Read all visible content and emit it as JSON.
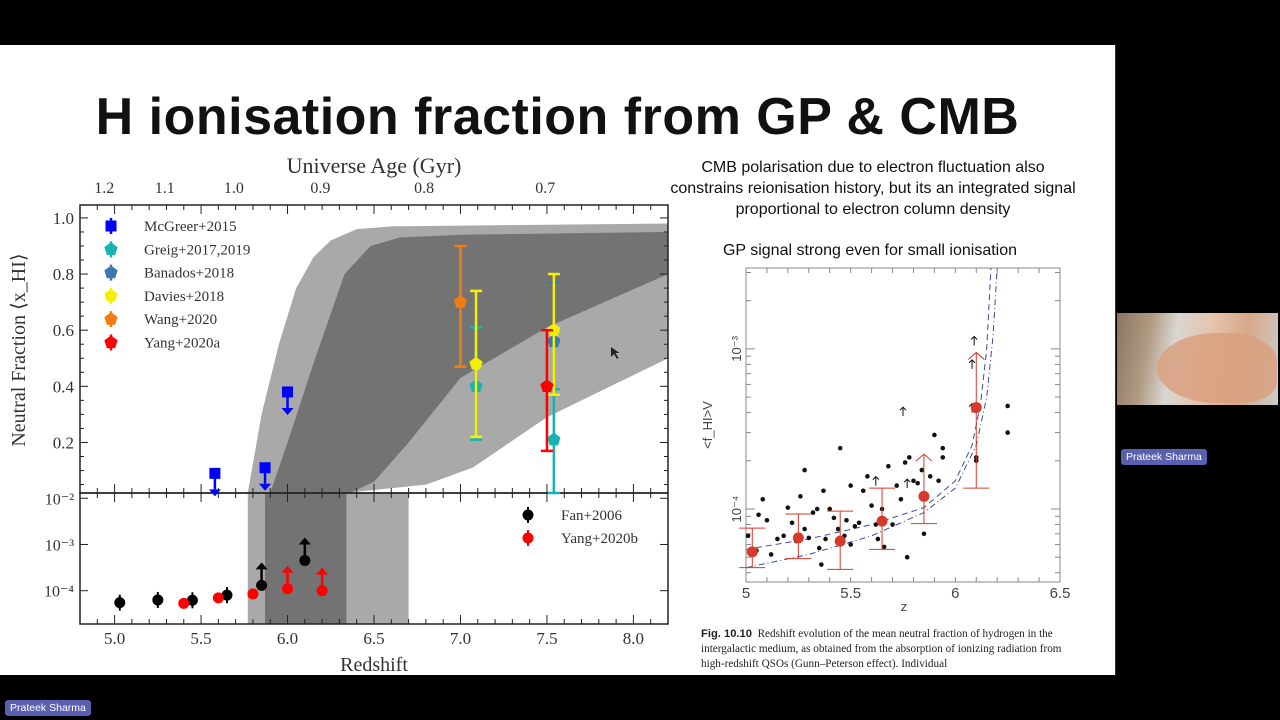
{
  "slide": {
    "title": "H ionisation fraction from GP & CMB",
    "cmb_note": "CMB polarisation due to electron fluctuation also constrains reionisation history, but its an integrated signal proportional to electron column density",
    "gp_note": "GP signal strong even for small ionisation",
    "caption_label": "Fig. 10.10",
    "caption_text": "Redshift evolution of the mean neutral fraction of hydrogen in the intergalactic medium, as obtained from the absorption of ionizing radiation from high-redshift QSOs (Gunn–Peterson effect). Individual"
  },
  "participants": {
    "presenter_name": "Prateek Sharma",
    "video_tile_name": "Prateek Sharma"
  },
  "chart_data": [
    {
      "type": "scatter",
      "panel": "upper",
      "xlabel": "Redshift",
      "ylabel": "Neutral Fraction ⟨x_HI⟩",
      "top_axis_label": "Universe Age (Gyr)",
      "top_ticks": [
        {
          "label": "1.2",
          "z": 4.94
        },
        {
          "label": "1.1",
          "z": 5.29
        },
        {
          "label": "1.0",
          "z": 5.69
        },
        {
          "label": "0.9",
          "z": 6.19
        },
        {
          "label": "0.8",
          "z": 6.79
        },
        {
          "label": "0.7",
          "z": 7.49
        }
      ],
      "xlim": [
        4.8,
        8.2
      ],
      "ylim": [
        0.02,
        1.046
      ],
      "xticks": [
        "5.0",
        "5.5",
        "6.0",
        "6.5",
        "7.0",
        "7.5",
        "8.0"
      ],
      "yticks": [
        "0.2",
        "0.4",
        "0.6",
        "0.8",
        "1.0"
      ],
      "legend_position": "top-left",
      "bands": [
        {
          "name": "outer",
          "color": "#a9a9a9",
          "polygon": [
            [
              5.77,
              0.02
            ],
            [
              5.85,
              0.3
            ],
            [
              5.95,
              0.55
            ],
            [
              6.05,
              0.75
            ],
            [
              6.15,
              0.86
            ],
            [
              6.25,
              0.92
            ],
            [
              6.4,
              0.96
            ],
            [
              6.6,
              0.97
            ],
            [
              8.2,
              0.98
            ],
            [
              8.2,
              0.5
            ],
            [
              7.5,
              0.29
            ],
            [
              7.07,
              0.11
            ],
            [
              6.8,
              0.05
            ],
            [
              6.33,
              0.02
            ]
          ]
        },
        {
          "name": "inner",
          "color": "#737373",
          "polygon": [
            [
              5.9,
              0.02
            ],
            [
              6.0,
              0.2
            ],
            [
              6.16,
              0.5
            ],
            [
              6.33,
              0.8
            ],
            [
              6.48,
              0.9
            ],
            [
              6.65,
              0.93
            ],
            [
              7.0,
              0.94
            ],
            [
              8.2,
              0.95
            ],
            [
              8.2,
              0.8
            ],
            [
              7.5,
              0.61
            ],
            [
              7.0,
              0.43
            ],
            [
              6.7,
              0.2
            ],
            [
              6.5,
              0.06
            ],
            [
              6.36,
              0.02
            ]
          ]
        }
      ],
      "series": [
        {
          "name": "McGreer+2015",
          "color": "#0000ff",
          "marker": "square",
          "points": [
            {
              "x": 5.58,
              "y": 0.09,
              "upper_limit": true
            },
            {
              "x": 5.87,
              "y": 0.11,
              "upper_limit": true
            },
            {
              "x": 6.0,
              "y": 0.38,
              "upper_limit": true
            }
          ]
        },
        {
          "name": "Greig+2017,2019",
          "color": "#17b3b3",
          "marker": "pentagon",
          "points": [
            {
              "x": 7.09,
              "y": 0.4,
              "lo": 0.21,
              "hi": 0.61
            },
            {
              "x": 7.54,
              "y": 0.21,
              "lo": 0.02,
              "hi": 0.39
            }
          ]
        },
        {
          "name": "Banados+2018",
          "color": "#3a78b0",
          "marker": "pentagon",
          "points": [
            {
              "x": 7.54,
              "y": 0.56,
              "lo": 0.56,
              "hi": 0.77
            }
          ]
        },
        {
          "name": "Davies+2018",
          "color": "#f5f000",
          "marker": "pentagon",
          "points": [
            {
              "x": 7.09,
              "y": 0.48,
              "lo": 0.22,
              "hi": 0.74
            },
            {
              "x": 7.54,
              "y": 0.6,
              "lo": 0.37,
              "hi": 0.8
            }
          ]
        },
        {
          "name": "Wang+2020",
          "color": "#f07d14",
          "marker": "pentagon",
          "points": [
            {
              "x": 7.0,
              "y": 0.7,
              "lo": 0.47,
              "hi": 0.9
            }
          ]
        },
        {
          "name": "Yang+2020a",
          "color": "#ff0000",
          "marker": "pentagon",
          "points": [
            {
              "x": 7.5,
              "y": 0.4,
              "lo": 0.17,
              "hi": 0.6
            }
          ]
        }
      ]
    },
    {
      "type": "scatter",
      "panel": "lower",
      "xlabel": "Redshift",
      "yscale": "log",
      "xlim": [
        4.8,
        8.2
      ],
      "ylim": [
        1.9e-05,
        0.013
      ],
      "yticks": [
        {
          "value": 0.01,
          "label": "10⁻²"
        },
        {
          "value": 0.001,
          "label": "10⁻³"
        },
        {
          "value": 0.0001,
          "label": "10⁻⁴"
        }
      ],
      "legend_position": "top-right",
      "bands": [
        {
          "name": "outer",
          "color": "#a9a9a9",
          "x_range": [
            5.77,
            6.7
          ]
        },
        {
          "name": "inner",
          "color": "#737373",
          "x_range": [
            5.87,
            6.34
          ]
        }
      ],
      "series": [
        {
          "name": "Fan+2006",
          "color": "#000000",
          "marker": "circle",
          "points": [
            {
              "x": 5.03,
              "y": 5.5e-05
            },
            {
              "x": 5.25,
              "y": 6.3e-05
            },
            {
              "x": 5.45,
              "y": 6.2e-05
            },
            {
              "x": 5.65,
              "y": 8e-05
            },
            {
              "x": 5.85,
              "y": 0.00013,
              "lower_limit": true
            },
            {
              "x": 6.1,
              "y": 0.00045,
              "lower_limit": true
            }
          ]
        },
        {
          "name": "Yang+2020b",
          "color": "#ff0000",
          "marker": "circle",
          "points": [
            {
              "x": 5.4,
              "y": 5.3e-05
            },
            {
              "x": 5.6,
              "y": 7e-05
            },
            {
              "x": 5.8,
              "y": 8.5e-05
            },
            {
              "x": 6.0,
              "y": 0.00011,
              "lower_limit": true
            },
            {
              "x": 6.2,
              "y": 0.0001,
              "lower_limit": true
            }
          ]
        }
      ]
    },
    {
      "type": "scatter",
      "xlabel": "z",
      "ylabel": "<f_HI>V",
      "yscale": "log",
      "xlim": [
        5.0,
        6.5
      ],
      "ylim": [
        3.5e-05,
        0.0032
      ],
      "xticks": [
        "5",
        "5.5",
        "6",
        "6.5"
      ],
      "yticks": [
        {
          "value": 0.001,
          "label": "10⁻³"
        },
        {
          "value": 0.0001,
          "label": "10⁻⁴"
        }
      ],
      "binned_means": {
        "color": "#d63a2a",
        "points": [
          {
            "x": 5.03,
            "y": 5.4e-05,
            "lo": 4.3e-05,
            "hi": 7.6e-05
          },
          {
            "x": 5.25,
            "y": 6.6e-05,
            "lo": 4.9e-05,
            "hi": 9.3e-05
          },
          {
            "x": 5.45,
            "y": 6.3e-05,
            "lo": 4.2e-05,
            "hi": 9.7e-05
          },
          {
            "x": 5.65,
            "y": 8.4e-05,
            "lo": 5.6e-05,
            "hi": 0.000135
          },
          {
            "x": 5.85,
            "y": 0.00012,
            "lo": 8.1e-05,
            "hi": 0.00022,
            "lower_limit": true
          },
          {
            "x": 6.1,
            "y": 0.00043,
            "lo": 0.000135,
            "hi": 0.00095,
            "lower_limit": true
          }
        ]
      },
      "individual_qsos": [
        [
          5.01,
          6.8e-05
        ],
        [
          5.05,
          5.5e-05
        ],
        [
          5.06,
          9.2e-05
        ],
        [
          5.08,
          0.000115
        ],
        [
          5.1,
          8.5e-05
        ],
        [
          5.12,
          5.2e-05
        ],
        [
          5.15,
          6.5e-05
        ],
        [
          5.18,
          6.8e-05
        ],
        [
          5.2,
          0.000102
        ],
        [
          5.22,
          8.2e-05
        ],
        [
          5.24,
          6.3e-05
        ],
        [
          5.26,
          0.00012
        ],
        [
          5.28,
          0.000175
        ],
        [
          5.28,
          7.5e-05
        ],
        [
          5.3,
          6.6e-05
        ],
        [
          5.32,
          9.5e-05
        ],
        [
          5.34,
          0.0001
        ],
        [
          5.35,
          5.7e-05
        ],
        [
          5.36,
          4.5e-05
        ],
        [
          5.37,
          0.00013
        ],
        [
          5.38,
          6.5e-05
        ],
        [
          5.4,
          0.0001
        ],
        [
          5.42,
          8.8e-05
        ],
        [
          5.44,
          7.5e-05
        ],
        [
          5.45,
          0.00024
        ],
        [
          5.47,
          6.8e-05
        ],
        [
          5.48,
          8.5e-05
        ],
        [
          5.5,
          0.00014
        ],
        [
          5.5,
          6e-05
        ],
        [
          5.52,
          7.8e-05
        ],
        [
          5.54,
          8.2e-05
        ],
        [
          5.56,
          0.00013
        ],
        [
          5.58,
          0.00016
        ],
        [
          5.6,
          0.000105
        ],
        [
          5.62,
          8e-05
        ],
        [
          5.63,
          6.5e-05
        ],
        [
          5.65,
          0.0001
        ],
        [
          5.66,
          5.8e-05
        ],
        [
          5.68,
          0.000185
        ],
        [
          5.7,
          8e-05
        ],
        [
          5.72,
          0.00014
        ],
        [
          5.74,
          0.000115
        ],
        [
          5.76,
          0.000195
        ],
        [
          5.77,
          5e-05
        ],
        [
          5.78,
          0.00021
        ],
        [
          5.8,
          0.00015
        ],
        [
          5.82,
          0.000145
        ],
        [
          5.84,
          0.000175
        ],
        [
          5.85,
          7e-05
        ],
        [
          5.88,
          0.00016
        ],
        [
          5.9,
          0.00029
        ],
        [
          5.92,
          0.00015
        ],
        [
          5.94,
          0.00024
        ],
        [
          5.94,
          0.00021
        ],
        [
          6.1,
          0.0002
        ],
        [
          6.1,
          0.00021
        ],
        [
          6.25,
          0.00044
        ],
        [
          6.25,
          0.0003
        ]
      ],
      "individual_lower_limits": [
        [
          5.62,
          0.00014
        ],
        [
          5.77,
          0.000135
        ],
        [
          5.75,
          0.00038
        ],
        [
          6.08,
          0.0004
        ],
        [
          6.08,
          0.00075
        ],
        [
          6.09,
          0.00105
        ]
      ],
      "model_curves": [
        {
          "style": "dashed",
          "color": "#3a4a9a",
          "points": [
            [
              5,
              5.6e-05
            ],
            [
              5.3,
              6.5e-05
            ],
            [
              5.6,
              8e-05
            ],
            [
              5.85,
              0.000102
            ],
            [
              6.0,
              0.00015
            ],
            [
              6.08,
              0.00025
            ],
            [
              6.12,
              0.00045
            ],
            [
              6.15,
              0.001
            ],
            [
              6.17,
              0.0032
            ]
          ]
        },
        {
          "style": "dash-dot",
          "color": "#3a4a9a",
          "points": [
            [
              5,
              4.3e-05
            ],
            [
              5.3,
              5.2e-05
            ],
            [
              5.6,
              6.8e-05
            ],
            [
              5.85,
              9.5e-05
            ],
            [
              6.0,
              0.000135
            ],
            [
              6.1,
              0.00025
            ],
            [
              6.15,
              0.0005
            ],
            [
              6.18,
              0.0012
            ],
            [
              6.2,
              0.0032
            ]
          ]
        }
      ]
    }
  ]
}
